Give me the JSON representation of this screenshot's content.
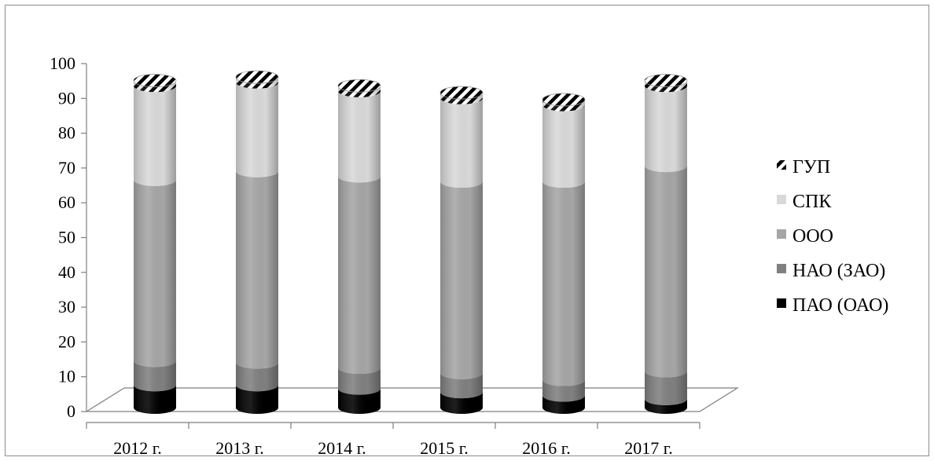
{
  "chart_data": {
    "type": "bar",
    "stacked": true,
    "style": "3d-cylinder",
    "categories": [
      "2012 г.",
      "2013 г.",
      "2014 г.",
      "2015 г.",
      "2016 г.",
      "2017 г."
    ],
    "series": [
      {
        "name": "ПАО (ОАО)",
        "color": "#000000",
        "values": [
          6.5,
          6.5,
          5.5,
          4.5,
          3.5,
          2.5
        ]
      },
      {
        "name": "НАО (ЗАО)",
        "color": "#808080",
        "values": [
          7,
          6.5,
          6,
          5.5,
          4.5,
          8
        ]
      },
      {
        "name": "ООО",
        "color": "#a6a6a6",
        "values": [
          52,
          55,
          55,
          55,
          57,
          59
        ]
      },
      {
        "name": "СПК",
        "color": "#d9d9d9",
        "values": [
          27,
          25.5,
          24.5,
          24,
          22,
          23
        ]
      },
      {
        "name": "ГУП",
        "color": "#ffffff",
        "pattern": "hatched",
        "values": [
          1.5,
          1.5,
          1.5,
          1.5,
          1.5,
          1.5
        ]
      }
    ],
    "ylim": [
      0,
      100
    ],
    "yticks": [
      0,
      10,
      20,
      30,
      40,
      50,
      60,
      70,
      80,
      90,
      100
    ],
    "legend_position": "right",
    "legend_order": [
      "ГУП",
      "СПК",
      "ООО",
      "НАО (ЗАО)",
      "ПАО (ОАО)"
    ],
    "grid": false
  }
}
